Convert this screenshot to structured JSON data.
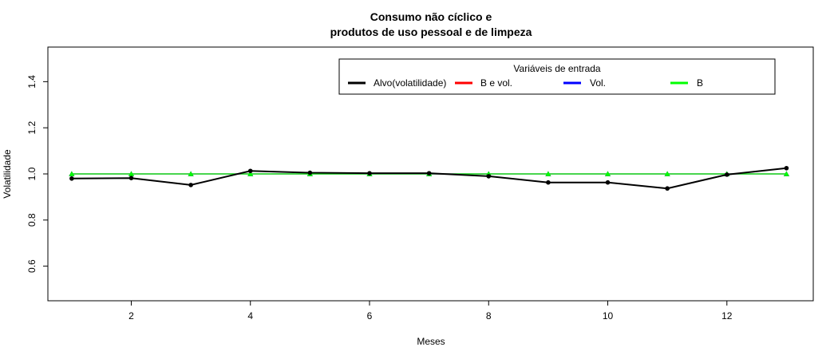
{
  "chart_data": {
    "type": "line",
    "title_line1": "Consumo não cíclico e",
    "title_line2": "produtos de uso pessoal e de limpeza",
    "xlabel": "Meses",
    "ylabel": "Volatilidade",
    "xlim": [
      0.6,
      13.45
    ],
    "ylim": [
      0.45,
      1.55
    ],
    "x_ticks": [
      2,
      4,
      6,
      8,
      10,
      12
    ],
    "y_ticks": [
      0.6,
      0.8,
      1.0,
      1.2,
      1.4
    ],
    "y_tick_labels": [
      "0.6",
      "0.8",
      "1.0",
      "1.2",
      "1.4"
    ],
    "x": [
      1,
      2,
      3,
      4,
      5,
      6,
      7,
      8,
      9,
      10,
      11,
      12,
      13
    ],
    "legend": {
      "title": "Variáveis de entrada",
      "position": "top-right",
      "entries": [
        {
          "label": "Alvo(volatilidade)",
          "color": "#000000"
        },
        {
          "label": "B e vol.",
          "color": "#ff0000"
        },
        {
          "label": "Vol.",
          "color": "#0000ff"
        },
        {
          "label": "B",
          "color": "#00ff00"
        }
      ]
    },
    "series": [
      {
        "name": "Alvo(volatilidade)",
        "color": "#000000",
        "marker": "circle",
        "values": [
          0.98,
          0.982,
          0.952,
          1.013,
          1.005,
          1.003,
          1.003,
          0.99,
          0.963,
          0.963,
          0.937,
          0.997,
          1.025
        ]
      },
      {
        "name": "B e vol.",
        "color": "#ff0000",
        "marker": "triangle",
        "values": [
          1.0,
          1.0,
          1.0,
          1.0,
          1.0,
          1.0,
          1.0,
          1.0,
          1.0,
          1.0,
          1.0,
          1.0,
          1.0
        ]
      },
      {
        "name": "Vol.",
        "color": "#0000ff",
        "marker": "triangle",
        "values": [
          1.0,
          1.0,
          1.0,
          1.0,
          1.0,
          1.0,
          1.0,
          1.0,
          1.0,
          1.0,
          1.0,
          1.0,
          1.0
        ]
      },
      {
        "name": "B",
        "color": "#00ff00",
        "marker": "triangle",
        "values": [
          1.0,
          1.0,
          1.0,
          1.0,
          1.0,
          1.0,
          1.0,
          1.0,
          1.0,
          1.0,
          1.0,
          1.0,
          1.0
        ]
      }
    ]
  }
}
